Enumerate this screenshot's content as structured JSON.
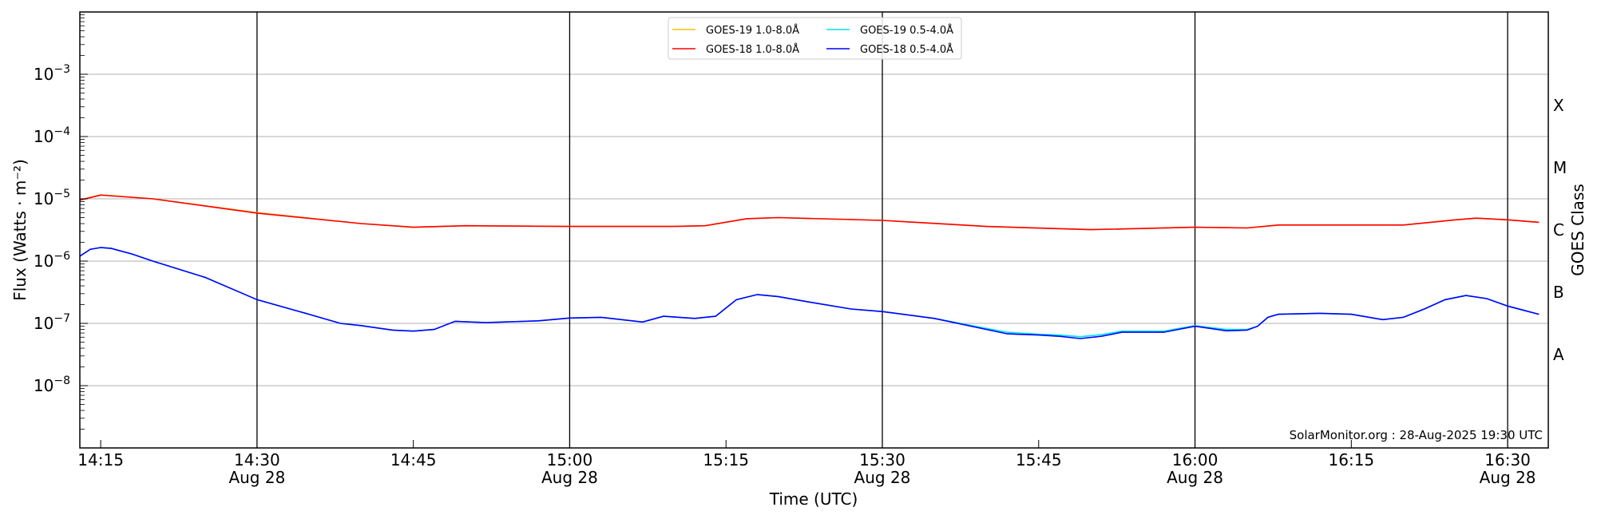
{
  "chart_data": {
    "type": "line",
    "title": "",
    "xlabel": "Time (UTC)",
    "ylabel": "Flux (Watts · m⁻²)",
    "ylabel_right": "GOES Class",
    "yscale": "log",
    "ylim": [
      1e-09,
      0.01
    ],
    "xlim": [
      "14:13",
      "16:34"
    ],
    "grid": "horizontal at decades; vertical black lines at half-hours",
    "legend_position": "top-center",
    "annotation": "SolarMonitor.org : 28-Aug-2025 19:30 UTC",
    "y_ticks": [
      {
        "exp": -8,
        "label": "10",
        "sup": "−8"
      },
      {
        "exp": -7,
        "label": "10",
        "sup": "−7"
      },
      {
        "exp": -6,
        "label": "10",
        "sup": "−6"
      },
      {
        "exp": -5,
        "label": "10",
        "sup": "−5"
      },
      {
        "exp": -4,
        "label": "10",
        "sup": "−4"
      },
      {
        "exp": -3,
        "label": "10",
        "sup": "−3"
      }
    ],
    "x_ticks": [
      {
        "t": "14:15",
        "label": "14:15",
        "sub": ""
      },
      {
        "t": "14:30",
        "label": "14:30",
        "sub": "Aug 28"
      },
      {
        "t": "14:45",
        "label": "14:45",
        "sub": ""
      },
      {
        "t": "15:00",
        "label": "15:00",
        "sub": "Aug 28"
      },
      {
        "t": "15:15",
        "label": "15:15",
        "sub": ""
      },
      {
        "t": "15:30",
        "label": "15:30",
        "sub": "Aug 28"
      },
      {
        "t": "15:45",
        "label": "15:45",
        "sub": ""
      },
      {
        "t": "16:00",
        "label": "16:00",
        "sub": "Aug 28"
      },
      {
        "t": "16:15",
        "label": "16:15",
        "sub": ""
      },
      {
        "t": "16:30",
        "label": "16:30",
        "sub": "Aug 28"
      }
    ],
    "class_labels": [
      {
        "label": "A",
        "exp": -7.5
      },
      {
        "label": "B",
        "exp": -6.5
      },
      {
        "label": "C",
        "exp": -5.5
      },
      {
        "label": "M",
        "exp": -4.5
      },
      {
        "label": "X",
        "exp": -3.5
      }
    ],
    "series": [
      {
        "name": "GOES-19 1.0-8.0Å",
        "color": "#ffc000",
        "x": [
          "14:13",
          "14:15",
          "14:20",
          "14:30",
          "14:40",
          "14:45",
          "14:50",
          "15:00",
          "15:10",
          "15:13",
          "15:17",
          "15:20",
          "15:30",
          "15:40",
          "15:50",
          "16:00",
          "16:05",
          "16:08",
          "16:20",
          "16:25",
          "16:27",
          "16:30",
          "16:33"
        ],
        "y": [
          9.6e-06,
          1.16e-05,
          1e-05,
          6e-06,
          4e-06,
          3.5e-06,
          3.7e-06,
          3.6e-06,
          3.6e-06,
          3.7e-06,
          4.8e-06,
          5e-06,
          4.5e-06,
          3.6e-06,
          3.2e-06,
          3.5e-06,
          3.4e-06,
          3.8e-06,
          3.8e-06,
          4.6e-06,
          4.9e-06,
          4.6e-06,
          4.2e-06
        ]
      },
      {
        "name": "GOES-18 1.0-8.0Å",
        "color": "#ff0000",
        "x": [
          "14:13",
          "14:15",
          "14:20",
          "14:30",
          "14:40",
          "14:45",
          "14:50",
          "15:00",
          "15:10",
          "15:13",
          "15:17",
          "15:20",
          "15:30",
          "15:40",
          "15:50",
          "16:00",
          "16:05",
          "16:08",
          "16:20",
          "16:25",
          "16:27",
          "16:30",
          "16:33"
        ],
        "y": [
          9.5e-06,
          1.15e-05,
          1e-05,
          5.9e-06,
          4e-06,
          3.5e-06,
          3.7e-06,
          3.6e-06,
          3.6e-06,
          3.7e-06,
          4.8e-06,
          5e-06,
          4.5e-06,
          3.6e-06,
          3.2e-06,
          3.5e-06,
          3.4e-06,
          3.8e-06,
          3.8e-06,
          4.6e-06,
          4.9e-06,
          4.6e-06,
          4.2e-06
        ]
      },
      {
        "name": "GOES-19 0.5-4.0Å",
        "color": "#00e5e5",
        "x": [
          "14:13",
          "14:14",
          "14:15",
          "14:16",
          "14:18",
          "14:20",
          "14:25",
          "14:30",
          "14:35",
          "14:38",
          "14:40",
          "14:43",
          "14:45",
          "14:47",
          "14:49",
          "14:52",
          "14:57",
          "15:00",
          "15:03",
          "15:07",
          "15:09",
          "15:12",
          "15:14",
          "15:16",
          "15:18",
          "15:20",
          "15:23",
          "15:27",
          "15:30",
          "15:35",
          "15:40",
          "15:42",
          "15:45",
          "15:47",
          "15:49",
          "15:51",
          "15:53",
          "15:57",
          "16:00",
          "16:03",
          "16:05",
          "16:06",
          "16:07",
          "16:08",
          "16:12",
          "16:15",
          "16:18",
          "16:20",
          "16:22",
          "16:24",
          "16:26",
          "16:28",
          "16:30",
          "16:33"
        ],
        "y": [
          1.2e-06,
          1.55e-06,
          1.65e-06,
          1.6e-06,
          1.3e-06,
          1e-06,
          5.5e-07,
          2.4e-07,
          1.4e-07,
          1e-07,
          9.2e-08,
          7.8e-08,
          7.5e-08,
          8e-08,
          1.08e-07,
          1.03e-07,
          1.1e-07,
          1.22e-07,
          1.25e-07,
          1.05e-07,
          1.3e-07,
          1.2e-07,
          1.3e-07,
          2.4e-07,
          2.9e-07,
          2.7e-07,
          2.2e-07,
          1.7e-07,
          1.55e-07,
          1.2e-07,
          8.3e-08,
          7.2e-08,
          6.7e-08,
          6.5e-08,
          6.1e-08,
          6.6e-08,
          7.5e-08,
          7.5e-08,
          9.2e-08,
          8e-08,
          8e-08,
          9e-08,
          1.25e-07,
          1.4e-07,
          1.45e-07,
          1.4e-07,
          1.15e-07,
          1.25e-07,
          1.7e-07,
          2.4e-07,
          2.8e-07,
          2.5e-07,
          1.9e-07,
          1.4e-07
        ]
      },
      {
        "name": "GOES-18 0.5-4.0Å",
        "color": "#0000ff",
        "x": [
          "14:13",
          "14:14",
          "14:15",
          "14:16",
          "14:18",
          "14:20",
          "14:25",
          "14:30",
          "14:35",
          "14:38",
          "14:40",
          "14:43",
          "14:45",
          "14:47",
          "14:49",
          "14:52",
          "14:57",
          "15:00",
          "15:03",
          "15:07",
          "15:09",
          "15:12",
          "15:14",
          "15:16",
          "15:18",
          "15:20",
          "15:23",
          "15:27",
          "15:30",
          "15:35",
          "15:40",
          "15:42",
          "15:45",
          "15:47",
          "15:49",
          "15:51",
          "15:53",
          "15:57",
          "16:00",
          "16:03",
          "16:05",
          "16:06",
          "16:07",
          "16:08",
          "16:12",
          "16:15",
          "16:18",
          "16:20",
          "16:22",
          "16:24",
          "16:26",
          "16:28",
          "16:30",
          "16:33"
        ],
        "y": [
          1.2e-06,
          1.55e-06,
          1.65e-06,
          1.6e-06,
          1.3e-06,
          1e-06,
          5.5e-07,
          2.4e-07,
          1.4e-07,
          1e-07,
          9.2e-08,
          7.8e-08,
          7.5e-08,
          8e-08,
          1.08e-07,
          1.03e-07,
          1.1e-07,
          1.22e-07,
          1.25e-07,
          1.05e-07,
          1.3e-07,
          1.2e-07,
          1.3e-07,
          2.4e-07,
          2.9e-07,
          2.7e-07,
          2.2e-07,
          1.7e-07,
          1.55e-07,
          1.2e-07,
          8e-08,
          6.8e-08,
          6.5e-08,
          6.2e-08,
          5.7e-08,
          6.2e-08,
          7.2e-08,
          7.2e-08,
          9e-08,
          7.6e-08,
          7.8e-08,
          9e-08,
          1.25e-07,
          1.4e-07,
          1.45e-07,
          1.4e-07,
          1.15e-07,
          1.25e-07,
          1.7e-07,
          2.4e-07,
          2.8e-07,
          2.5e-07,
          1.9e-07,
          1.4e-07
        ]
      }
    ]
  }
}
